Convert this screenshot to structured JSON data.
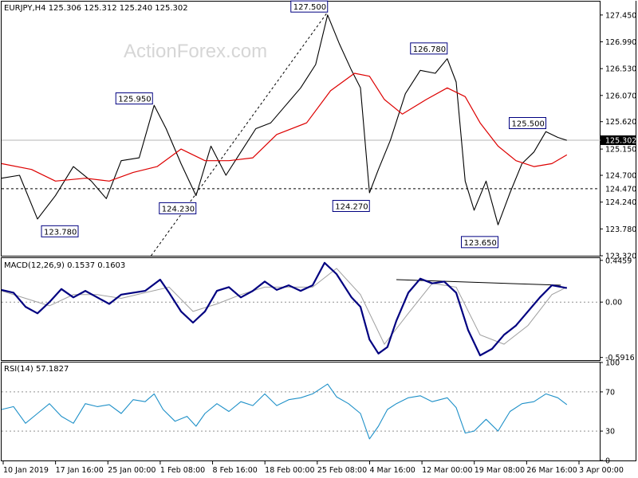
{
  "chart_data": [
    {
      "type": "line",
      "panel": "price",
      "title": "EURJPY,H4  125.306 125.312 125.240 125.302",
      "ylim": [
        123.32,
        127.68
      ],
      "y_ticks": [
        "127.450",
        "126.990",
        "126.530",
        "126.070",
        "125.620",
        "125.150",
        "124.700",
        "124.240",
        "123.780",
        "123.320"
      ],
      "series": [
        {
          "name": "close",
          "points": [
            {
              "x": 0.0,
              "y": 124.65
            },
            {
              "x": 0.03,
              "y": 124.7
            },
            {
              "x": 0.06,
              "y": 123.95
            },
            {
              "x": 0.09,
              "y": 124.35
            },
            {
              "x": 0.12,
              "y": 124.85
            },
            {
              "x": 0.15,
              "y": 124.6
            },
            {
              "x": 0.175,
              "y": 124.3
            },
            {
              "x": 0.2,
              "y": 124.95
            },
            {
              "x": 0.23,
              "y": 125.0
            },
            {
              "x": 0.255,
              "y": 125.9
            },
            {
              "x": 0.275,
              "y": 125.5
            },
            {
              "x": 0.3,
              "y": 124.9
            },
            {
              "x": 0.325,
              "y": 124.35
            },
            {
              "x": 0.35,
              "y": 125.2
            },
            {
              "x": 0.375,
              "y": 124.7
            },
            {
              "x": 0.4,
              "y": 125.1
            },
            {
              "x": 0.425,
              "y": 125.5
            },
            {
              "x": 0.45,
              "y": 125.6
            },
            {
              "x": 0.475,
              "y": 125.9
            },
            {
              "x": 0.5,
              "y": 126.2
            },
            {
              "x": 0.525,
              "y": 126.6
            },
            {
              "x": 0.545,
              "y": 127.45
            },
            {
              "x": 0.565,
              "y": 126.95
            },
            {
              "x": 0.585,
              "y": 126.5
            },
            {
              "x": 0.6,
              "y": 126.2
            },
            {
              "x": 0.615,
              "y": 124.4
            },
            {
              "x": 0.63,
              "y": 124.8
            },
            {
              "x": 0.65,
              "y": 125.3
            },
            {
              "x": 0.675,
              "y": 126.1
            },
            {
              "x": 0.7,
              "y": 126.5
            },
            {
              "x": 0.725,
              "y": 126.45
            },
            {
              "x": 0.745,
              "y": 126.7
            },
            {
              "x": 0.76,
              "y": 126.3
            },
            {
              "x": 0.775,
              "y": 124.6
            },
            {
              "x": 0.79,
              "y": 124.1
            },
            {
              "x": 0.81,
              "y": 124.6
            },
            {
              "x": 0.83,
              "y": 123.85
            },
            {
              "x": 0.85,
              "y": 124.4
            },
            {
              "x": 0.87,
              "y": 124.9
            },
            {
              "x": 0.89,
              "y": 125.1
            },
            {
              "x": 0.91,
              "y": 125.45
            },
            {
              "x": 0.93,
              "y": 125.35
            },
            {
              "x": 0.945,
              "y": 125.3
            }
          ]
        },
        {
          "name": "moving average",
          "points": [
            {
              "x": 0.0,
              "y": 124.9
            },
            {
              "x": 0.05,
              "y": 124.8
            },
            {
              "x": 0.09,
              "y": 124.6
            },
            {
              "x": 0.14,
              "y": 124.65
            },
            {
              "x": 0.18,
              "y": 124.6
            },
            {
              "x": 0.22,
              "y": 124.75
            },
            {
              "x": 0.26,
              "y": 124.85
            },
            {
              "x": 0.3,
              "y": 125.15
            },
            {
              "x": 0.34,
              "y": 124.95
            },
            {
              "x": 0.38,
              "y": 124.95
            },
            {
              "x": 0.42,
              "y": 125.0
            },
            {
              "x": 0.46,
              "y": 125.4
            },
            {
              "x": 0.51,
              "y": 125.6
            },
            {
              "x": 0.55,
              "y": 126.15
            },
            {
              "x": 0.59,
              "y": 126.45
            },
            {
              "x": 0.615,
              "y": 126.4
            },
            {
              "x": 0.64,
              "y": 126.0
            },
            {
              "x": 0.67,
              "y": 125.75
            },
            {
              "x": 0.71,
              "y": 126.0
            },
            {
              "x": 0.745,
              "y": 126.2
            },
            {
              "x": 0.775,
              "y": 126.05
            },
            {
              "x": 0.8,
              "y": 125.6
            },
            {
              "x": 0.83,
              "y": 125.2
            },
            {
              "x": 0.86,
              "y": 124.95
            },
            {
              "x": 0.89,
              "y": 124.85
            },
            {
              "x": 0.92,
              "y": 124.9
            },
            {
              "x": 0.945,
              "y": 125.05
            }
          ]
        }
      ],
      "reference_lines": [
        125.302,
        124.47
      ],
      "trendline": [
        {
          "x": 0.25,
          "y": 123.32
        },
        {
          "x": 0.545,
          "y": 127.5
        }
      ],
      "annotations": [
        {
          "text": "127.500",
          "x": 0.545,
          "y": 127.5
        },
        {
          "text": "126.780",
          "x": 0.745,
          "y": 126.78
        },
        {
          "text": "125.950",
          "x": 0.255,
          "y": 125.95
        },
        {
          "text": "125.500",
          "x": 0.91,
          "y": 125.5
        },
        {
          "text": "124.230",
          "x": 0.325,
          "y": 124.23
        },
        {
          "text": "124.270",
          "x": 0.615,
          "y": 124.27
        },
        {
          "text": "123.780",
          "x": 0.12,
          "y": 123.78
        },
        {
          "text": "123.650",
          "x": 0.83,
          "y": 123.65
        }
      ],
      "price_label": "125.302",
      "level_label": "124.470",
      "watermark": "ActionForex.com"
    },
    {
      "type": "line",
      "panel": "macd",
      "title": "MACD(12,26,9) 0.1537 0.1603",
      "ylim": [
        -0.62,
        0.47
      ],
      "y_ticks": [
        "0.4459",
        "0.00",
        "-0.5916"
      ],
      "series": [
        {
          "name": "macd",
          "points": [
            {
              "x": 0.0,
              "y": 0.13
            },
            {
              "x": 0.02,
              "y": 0.1
            },
            {
              "x": 0.04,
              "y": -0.05
            },
            {
              "x": 0.06,
              "y": -0.12
            },
            {
              "x": 0.08,
              "y": 0.0
            },
            {
              "x": 0.1,
              "y": 0.14
            },
            {
              "x": 0.12,
              "y": 0.05
            },
            {
              "x": 0.14,
              "y": 0.12
            },
            {
              "x": 0.16,
              "y": 0.05
            },
            {
              "x": 0.18,
              "y": -0.02
            },
            {
              "x": 0.2,
              "y": 0.08
            },
            {
              "x": 0.22,
              "y": 0.1
            },
            {
              "x": 0.24,
              "y": 0.12
            },
            {
              "x": 0.265,
              "y": 0.24
            },
            {
              "x": 0.28,
              "y": 0.1
            },
            {
              "x": 0.3,
              "y": -0.1
            },
            {
              "x": 0.32,
              "y": -0.22
            },
            {
              "x": 0.34,
              "y": -0.1
            },
            {
              "x": 0.36,
              "y": 0.12
            },
            {
              "x": 0.38,
              "y": 0.16
            },
            {
              "x": 0.4,
              "y": 0.05
            },
            {
              "x": 0.42,
              "y": 0.12
            },
            {
              "x": 0.44,
              "y": 0.22
            },
            {
              "x": 0.46,
              "y": 0.13
            },
            {
              "x": 0.48,
              "y": 0.18
            },
            {
              "x": 0.5,
              "y": 0.12
            },
            {
              "x": 0.52,
              "y": 0.18
            },
            {
              "x": 0.54,
              "y": 0.42
            },
            {
              "x": 0.56,
              "y": 0.3
            },
            {
              "x": 0.585,
              "y": 0.05
            },
            {
              "x": 0.6,
              "y": -0.05
            },
            {
              "x": 0.615,
              "y": -0.4
            },
            {
              "x": 0.63,
              "y": -0.55
            },
            {
              "x": 0.645,
              "y": -0.48
            },
            {
              "x": 0.66,
              "y": -0.2
            },
            {
              "x": 0.68,
              "y": 0.1
            },
            {
              "x": 0.7,
              "y": 0.25
            },
            {
              "x": 0.72,
              "y": 0.2
            },
            {
              "x": 0.74,
              "y": 0.22
            },
            {
              "x": 0.76,
              "y": 0.1
            },
            {
              "x": 0.78,
              "y": -0.3
            },
            {
              "x": 0.8,
              "y": -0.57
            },
            {
              "x": 0.82,
              "y": -0.5
            },
            {
              "x": 0.84,
              "y": -0.35
            },
            {
              "x": 0.86,
              "y": -0.25
            },
            {
              "x": 0.88,
              "y": -0.1
            },
            {
              "x": 0.9,
              "y": 0.05
            },
            {
              "x": 0.92,
              "y": 0.18
            },
            {
              "x": 0.945,
              "y": 0.15
            }
          ]
        },
        {
          "name": "signal",
          "points": [
            {
              "x": 0.0,
              "y": 0.12
            },
            {
              "x": 0.04,
              "y": 0.04
            },
            {
              "x": 0.08,
              "y": -0.04
            },
            {
              "x": 0.12,
              "y": 0.08
            },
            {
              "x": 0.16,
              "y": 0.08
            },
            {
              "x": 0.2,
              "y": 0.04
            },
            {
              "x": 0.24,
              "y": 0.1
            },
            {
              "x": 0.28,
              "y": 0.16
            },
            {
              "x": 0.32,
              "y": -0.1
            },
            {
              "x": 0.36,
              "y": -0.02
            },
            {
              "x": 0.4,
              "y": 0.08
            },
            {
              "x": 0.44,
              "y": 0.16
            },
            {
              "x": 0.48,
              "y": 0.16
            },
            {
              "x": 0.52,
              "y": 0.16
            },
            {
              "x": 0.56,
              "y": 0.36
            },
            {
              "x": 0.6,
              "y": 0.08
            },
            {
              "x": 0.64,
              "y": -0.45
            },
            {
              "x": 0.68,
              "y": -0.12
            },
            {
              "x": 0.72,
              "y": 0.2
            },
            {
              "x": 0.76,
              "y": 0.16
            },
            {
              "x": 0.8,
              "y": -0.35
            },
            {
              "x": 0.84,
              "y": -0.45
            },
            {
              "x": 0.88,
              "y": -0.25
            },
            {
              "x": 0.92,
              "y": 0.08
            },
            {
              "x": 0.945,
              "y": 0.16
            }
          ]
        }
      ],
      "trendline": [
        {
          "x": 0.66,
          "y": 0.24
        },
        {
          "x": 0.935,
          "y": 0.18
        }
      ]
    },
    {
      "type": "line",
      "panel": "rsi",
      "title": "RSI(14) 57.1827",
      "ylim": [
        0,
        100
      ],
      "y_ticks": [
        "100",
        "70",
        "30",
        "0"
      ],
      "levels": [
        70,
        30
      ],
      "series": [
        {
          "name": "rsi",
          "points": [
            {
              "x": 0.0,
              "y": 52
            },
            {
              "x": 0.02,
              "y": 55
            },
            {
              "x": 0.04,
              "y": 38
            },
            {
              "x": 0.06,
              "y": 48
            },
            {
              "x": 0.08,
              "y": 58
            },
            {
              "x": 0.1,
              "y": 45
            },
            {
              "x": 0.12,
              "y": 38
            },
            {
              "x": 0.14,
              "y": 58
            },
            {
              "x": 0.16,
              "y": 55
            },
            {
              "x": 0.18,
              "y": 57
            },
            {
              "x": 0.2,
              "y": 48
            },
            {
              "x": 0.22,
              "y": 62
            },
            {
              "x": 0.24,
              "y": 60
            },
            {
              "x": 0.255,
              "y": 68
            },
            {
              "x": 0.27,
              "y": 52
            },
            {
              "x": 0.29,
              "y": 40
            },
            {
              "x": 0.31,
              "y": 45
            },
            {
              "x": 0.325,
              "y": 35
            },
            {
              "x": 0.34,
              "y": 48
            },
            {
              "x": 0.36,
              "y": 58
            },
            {
              "x": 0.38,
              "y": 50
            },
            {
              "x": 0.4,
              "y": 60
            },
            {
              "x": 0.42,
              "y": 56
            },
            {
              "x": 0.44,
              "y": 68
            },
            {
              "x": 0.46,
              "y": 56
            },
            {
              "x": 0.48,
              "y": 62
            },
            {
              "x": 0.5,
              "y": 64
            },
            {
              "x": 0.52,
              "y": 68
            },
            {
              "x": 0.545,
              "y": 78
            },
            {
              "x": 0.56,
              "y": 65
            },
            {
              "x": 0.58,
              "y": 58
            },
            {
              "x": 0.6,
              "y": 48
            },
            {
              "x": 0.615,
              "y": 22
            },
            {
              "x": 0.63,
              "y": 35
            },
            {
              "x": 0.645,
              "y": 52
            },
            {
              "x": 0.66,
              "y": 58
            },
            {
              "x": 0.68,
              "y": 64
            },
            {
              "x": 0.7,
              "y": 66
            },
            {
              "x": 0.72,
              "y": 60
            },
            {
              "x": 0.745,
              "y": 64
            },
            {
              "x": 0.76,
              "y": 54
            },
            {
              "x": 0.775,
              "y": 28
            },
            {
              "x": 0.79,
              "y": 30
            },
            {
              "x": 0.81,
              "y": 42
            },
            {
              "x": 0.83,
              "y": 30
            },
            {
              "x": 0.85,
              "y": 50
            },
            {
              "x": 0.87,
              "y": 58
            },
            {
              "x": 0.89,
              "y": 60
            },
            {
              "x": 0.91,
              "y": 68
            },
            {
              "x": 0.93,
              "y": 64
            },
            {
              "x": 0.945,
              "y": 57
            }
          ]
        }
      ]
    }
  ],
  "x_axis": {
    "ticks": [
      "10 Jan 2019",
      "17 Jan 16:00",
      "25 Jan 00:00",
      "1 Feb 08:00",
      "8 Feb 16:00",
      "18 Feb 00:00",
      "25 Feb 08:00",
      "4 Mar 16:00",
      "12 Mar 00:00",
      "19 Mar 08:00",
      "26 Mar 16:00",
      "3 Apr 00:00"
    ]
  },
  "colors": {
    "price": "#000000",
    "ma": "#dd0000",
    "macd": "#000080",
    "signal": "#a0a0a0",
    "label_border": "#000080",
    "rsi": "#1e90c8",
    "grid_dash": "#909090"
  }
}
